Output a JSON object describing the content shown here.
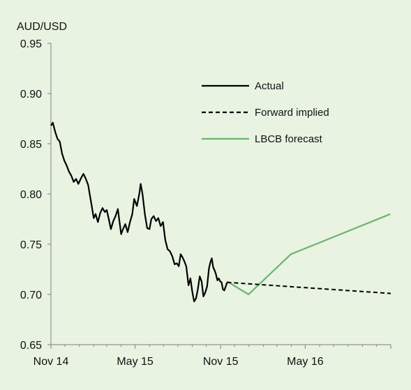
{
  "chart_data": {
    "type": "line",
    "ylabel": "AUD/USD",
    "ylim": [
      0.65,
      0.95
    ],
    "yticks": [
      "0.95",
      "0.90",
      "0.85",
      "0.80",
      "0.75",
      "0.70",
      "0.65"
    ],
    "xticks": [
      "Nov 14",
      "May 15",
      "Nov 15",
      "May 16"
    ],
    "x_range": [
      "2014-11",
      "2016-11"
    ],
    "grid": false,
    "legend_position": "top-right",
    "series": [
      {
        "name": "Actual",
        "style": "solid",
        "color": "#000000",
        "points": [
          [
            "2014-11-01",
            0.868
          ],
          [
            "2014-11-05",
            0.871
          ],
          [
            "2014-11-10",
            0.862
          ],
          [
            "2014-11-15",
            0.855
          ],
          [
            "2014-11-20",
            0.852
          ],
          [
            "2014-11-25",
            0.84
          ],
          [
            "2014-11-30",
            0.833
          ],
          [
            "2014-12-05",
            0.828
          ],
          [
            "2014-12-10",
            0.822
          ],
          [
            "2014-12-15",
            0.818
          ],
          [
            "2014-12-20",
            0.812
          ],
          [
            "2014-12-25",
            0.815
          ],
          [
            "2014-12-30",
            0.81
          ],
          [
            "2015-01-05",
            0.816
          ],
          [
            "2015-01-10",
            0.82
          ],
          [
            "2015-01-15",
            0.815
          ],
          [
            "2015-01-20",
            0.809
          ],
          [
            "2015-01-27",
            0.79
          ],
          [
            "2015-02-01",
            0.776
          ],
          [
            "2015-02-05",
            0.78
          ],
          [
            "2015-02-10",
            0.772
          ],
          [
            "2015-02-15",
            0.781
          ],
          [
            "2015-02-20",
            0.786
          ],
          [
            "2015-02-25",
            0.782
          ],
          [
            "2015-03-01",
            0.784
          ],
          [
            "2015-03-05",
            0.776
          ],
          [
            "2015-03-10",
            0.765
          ],
          [
            "2015-03-15",
            0.773
          ],
          [
            "2015-03-20",
            0.778
          ],
          [
            "2015-03-25",
            0.785
          ],
          [
            "2015-04-01",
            0.76
          ],
          [
            "2015-04-05",
            0.765
          ],
          [
            "2015-04-10",
            0.77
          ],
          [
            "2015-04-15",
            0.762
          ],
          [
            "2015-04-20",
            0.772
          ],
          [
            "2015-04-25",
            0.78
          ],
          [
            "2015-04-29",
            0.795
          ],
          [
            "2015-05-05",
            0.788
          ],
          [
            "2015-05-10",
            0.8
          ],
          [
            "2015-05-13",
            0.81
          ],
          [
            "2015-05-17",
            0.8
          ],
          [
            "2015-05-22",
            0.78
          ],
          [
            "2015-05-27",
            0.766
          ],
          [
            "2015-06-01",
            0.765
          ],
          [
            "2015-06-05",
            0.775
          ],
          [
            "2015-06-10",
            0.778
          ],
          [
            "2015-06-15",
            0.773
          ],
          [
            "2015-06-20",
            0.776
          ],
          [
            "2015-06-25",
            0.768
          ],
          [
            "2015-06-30",
            0.772
          ],
          [
            "2015-07-05",
            0.754
          ],
          [
            "2015-07-10",
            0.745
          ],
          [
            "2015-07-15",
            0.743
          ],
          [
            "2015-07-20",
            0.738
          ],
          [
            "2015-07-25",
            0.73
          ],
          [
            "2015-07-30",
            0.731
          ],
          [
            "2015-08-03",
            0.728
          ],
          [
            "2015-08-07",
            0.74
          ],
          [
            "2015-08-11",
            0.737
          ],
          [
            "2015-08-15",
            0.733
          ],
          [
            "2015-08-19",
            0.728
          ],
          [
            "2015-08-24",
            0.709
          ],
          [
            "2015-08-28",
            0.716
          ],
          [
            "2015-09-01",
            0.703
          ],
          [
            "2015-09-05",
            0.693
          ],
          [
            "2015-09-09",
            0.696
          ],
          [
            "2015-09-13",
            0.705
          ],
          [
            "2015-09-17",
            0.718
          ],
          [
            "2015-09-21",
            0.713
          ],
          [
            "2015-09-25",
            0.698
          ],
          [
            "2015-09-29",
            0.702
          ],
          [
            "2015-10-03",
            0.708
          ],
          [
            "2015-10-07",
            0.726
          ],
          [
            "2015-10-10",
            0.732
          ],
          [
            "2015-10-13",
            0.736
          ],
          [
            "2015-10-16",
            0.727
          ],
          [
            "2015-10-19",
            0.724
          ],
          [
            "2015-10-22",
            0.72
          ],
          [
            "2015-10-25",
            0.714
          ],
          [
            "2015-10-28",
            0.716
          ],
          [
            "2015-10-31",
            0.713
          ],
          [
            "2015-11-03",
            0.712
          ],
          [
            "2015-11-06",
            0.705
          ],
          [
            "2015-11-09",
            0.704
          ],
          [
            "2015-11-12",
            0.708
          ],
          [
            "2015-11-15",
            0.712
          ]
        ]
      },
      {
        "name": "Forward implied",
        "style": "dashed",
        "color": "#000000",
        "points": [
          [
            "2015-11-15",
            0.712
          ],
          [
            "2016-11-01",
            0.701
          ]
        ]
      },
      {
        "name": "LBCB forecast",
        "style": "solid",
        "color": "#6ab56a",
        "points": [
          [
            "2015-11-15",
            0.713
          ],
          [
            "2015-12-31",
            0.7
          ],
          [
            "2016-03-31",
            0.74
          ],
          [
            "2016-10-31",
            0.78
          ]
        ]
      }
    ]
  }
}
